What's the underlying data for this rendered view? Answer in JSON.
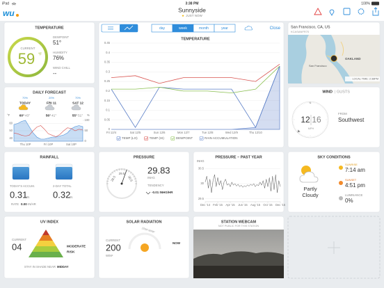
{
  "status_bar": {
    "device": "iPad",
    "time": "3:38 PM",
    "battery": "100%"
  },
  "header": {
    "logo": "wu",
    "title": "Sunnyside",
    "updated": "JUST NOW"
  },
  "temperature": {
    "title": "TEMPERATURE",
    "current_label": "CURRENT",
    "current": 59,
    "unit": "°F",
    "dewpoint_label": "DEWPOINT",
    "dewpoint": "51°",
    "humidity_label": "HUMIDITY",
    "humidity": "76%",
    "wind_chill_label": "WIND CHILL",
    "wind_chill": "--"
  },
  "chart_toolbar": {
    "ranges": [
      "day",
      "week",
      "month",
      "year"
    ],
    "selected": 1,
    "close": "Close"
  },
  "chart_data": [
    {
      "type": "line",
      "title": "TEMPERATURE",
      "categories": [
        "Fri 12/4",
        "Sat 12/5",
        "Sun 12/6",
        "Mon 12/7",
        "Tue 12/8",
        "Wed 12/9",
        "Thu 12/10",
        null
      ],
      "series": [
        {
          "name": "TEMP (LO)",
          "color": "#5b7fc7",
          "values": [
            0.21,
            0.01,
            0.22,
            0.21,
            0.21,
            0.21,
            0.01,
            0.33
          ]
        },
        {
          "name": "TEMP (HI)",
          "color": "#d9534f",
          "values": [
            0.27,
            0.28,
            0.24,
            0.27,
            0.27,
            0.27,
            0.25,
            0.34
          ]
        },
        {
          "name": "DEWPOINT",
          "color": "#8cc152",
          "values": [
            0.21,
            0.21,
            0.22,
            0.2,
            0.2,
            0.19,
            0.21,
            0.33
          ]
        },
        {
          "name": "RAIN ACCUMULATION",
          "color": "#6f8fd0",
          "style": "area",
          "values": [
            0,
            0,
            0,
            0,
            0,
            0,
            0.01,
            0.33
          ]
        }
      ],
      "ylim": [
        0,
        0.45
      ],
      "yticks": [
        0,
        0.05,
        0.1,
        0.15,
        0.2,
        0.25,
        0.3,
        0.35,
        0.4,
        0.45
      ],
      "grid": true,
      "legend": "bottom"
    },
    {
      "type": "line",
      "x": [
        0,
        1,
        2,
        3,
        4,
        5,
        6,
        7,
        8,
        9,
        10,
        11,
        12,
        13,
        14,
        15,
        16,
        17,
        18
      ],
      "xlim": [
        0,
        18
      ],
      "xticks": [
        {
          "value": 3,
          "label": "Thu 10P"
        },
        {
          "value": 9,
          "label": "Fri 10P"
        },
        {
          "value": 15,
          "label": "Sat 10P"
        }
      ],
      "ylabel": "°F",
      "y2label": "%",
      "series": [
        {
          "color": "#d9534f",
          "values": [
            47,
            46,
            44,
            43,
            44,
            50,
            55,
            57,
            52,
            46,
            44,
            42,
            45,
            50,
            54,
            53,
            50,
            52,
            51
          ]
        },
        {
          "color": "#4a90d9",
          "style": "area",
          "axis": "y2",
          "values": [
            80,
            85,
            95,
            100,
            70,
            40,
            20,
            10,
            10,
            15,
            20,
            20,
            25,
            30,
            40,
            60,
            70,
            75,
            70
          ]
        }
      ],
      "ylim": [
        36,
        64
      ],
      "yticks": [
        40,
        50,
        60
      ],
      "y2lim": [
        0,
        100
      ],
      "y2ticks": [
        0,
        50,
        100
      ],
      "grid": true
    },
    {
      "type": "line",
      "title": "PRESSURE – PAST YEAR",
      "ylabel": "INHG",
      "x": [
        0,
        1,
        2,
        3,
        4,
        5,
        6,
        7,
        8,
        9,
        10,
        11,
        12,
        13,
        14,
        15,
        16,
        17,
        18,
        19,
        20,
        21,
        22,
        23,
        24,
        25,
        26,
        27,
        28,
        29,
        30,
        31,
        32,
        33,
        34,
        35,
        36,
        37,
        38,
        39,
        40,
        41,
        42,
        43,
        44,
        45,
        46,
        47,
        48
      ],
      "xlim": [
        0,
        48
      ],
      "xticks": [
        {
          "value": 0,
          "label": "Dec '14"
        },
        {
          "value": 8,
          "label": "Feb '15"
        },
        {
          "value": 16,
          "label": "Apr '15"
        },
        {
          "value": 24,
          "label": "Jun '15"
        },
        {
          "value": 32,
          "label": "Aug '15"
        },
        {
          "value": 40,
          "label": "Oct '15"
        },
        {
          "value": 48,
          "label": "Dec '15"
        }
      ],
      "series": [
        {
          "color": "#555555",
          "values": [
            30.05,
            30.25,
            29.85,
            30.15,
            29.7,
            30.1,
            30.3,
            29.9,
            30.2,
            29.95,
            30.1,
            29.8,
            30.05,
            30.15,
            29.95,
            30.0,
            29.9,
            30.05,
            29.95,
            30.0,
            29.92,
            29.98,
            29.9,
            29.95,
            29.88,
            29.93,
            29.9,
            29.96,
            29.92,
            29.98,
            29.94,
            30.0,
            29.9,
            29.97,
            29.93,
            30.05,
            29.95,
            30.1,
            29.85,
            30.15,
            29.9,
            30.2,
            29.75,
            30.25,
            29.8,
            30.3,
            29.7,
            30.1,
            29.9
          ]
        }
      ],
      "ylim": [
        29.4,
        30.6
      ],
      "yticks": [
        29.5,
        30,
        30.5
      ],
      "grid": true
    }
  ],
  "map": {
    "place": "San Francisco, CA, US",
    "station": "KCASANFR70",
    "local_time": "LOCAL TIME: 2:38PM",
    "labels": [
      "OAKLAND",
      "San Francisco"
    ]
  },
  "forecast": {
    "title": "DAILY FORECAST",
    "days": [
      {
        "name": "TODAY",
        "precip": "70%",
        "hi": "60°",
        "lo": "43°"
      },
      {
        "name": "FRI 11",
        "precip": "20%",
        "hi": "56°",
        "lo": "41°"
      },
      {
        "name": "SAT 12",
        "precip": "70%",
        "hi": "55°",
        "lo": "51°"
      }
    ]
  },
  "wind": {
    "title": "WIND",
    "gusts_title": "GUSTS",
    "north": "N",
    "speed": 12,
    "gust": 16,
    "unit": "MPH",
    "from_label": "FROM",
    "from": "Southwest"
  },
  "rainfall": {
    "title": "RAINFALL",
    "today_label": "TODAY'S ACCUM.",
    "today": "0.31",
    "two_day_label": "2-DAY TOTAL",
    "two_day": "0.32",
    "unit": "IN",
    "rate_label": "RATE",
    "rate": "0.00",
    "rate_unit": "IN/HR"
  },
  "pressure": {
    "title": "PRESSURE",
    "gauge_labels": [
      28.5,
      29.5,
      30.5
    ],
    "value": 29.83,
    "unit": "INHG",
    "tendency_label": "TENDENCY",
    "tendency": "-0.01 INHG/HR"
  },
  "sky": {
    "title": "SKY CONDITIONS",
    "condition_lines": [
      "Partly",
      "Cloudy"
    ],
    "sunrise_label": "SUNRISE",
    "sunrise": "7:14 am",
    "sunset_label": "SUNSET",
    "sunset": "4:51 pm",
    "luminance_label": "LUMINANCE",
    "luminance": "0%"
  },
  "uv": {
    "title": "UV INDEX",
    "current_label": "CURRENT",
    "current": "04",
    "risk": "MODERATE",
    "risk_suffix": "RISK",
    "advice": "STAY IN SHADE NEAR",
    "advice_bold": "MIDDAY"
  },
  "solar": {
    "title": "SOLAR RADIATION",
    "max": "1034 W/M²",
    "current_label": "CURRENT",
    "current": 200,
    "unit": "W/M²",
    "now": "NOW"
  },
  "webcam": {
    "title": "STATION WEBCAM",
    "note": "NOT PUBLIC FOR THIS STATION"
  }
}
